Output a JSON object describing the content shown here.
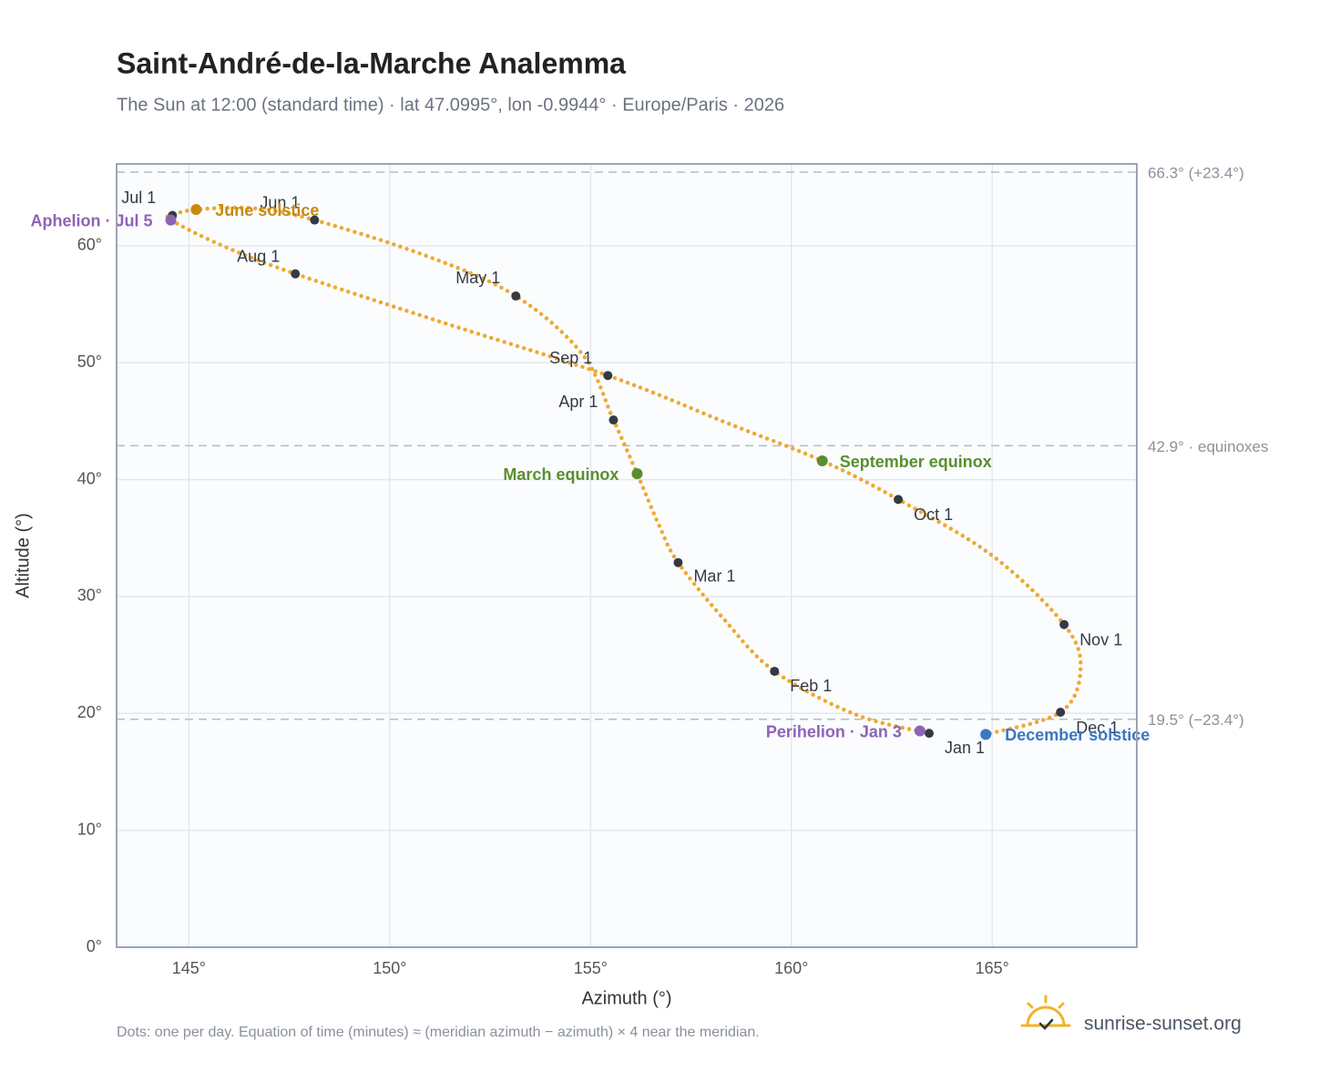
{
  "chart_data": {
    "type": "scatter",
    "title": "Saint-André-de-la-Marche Analemma",
    "subtitle": "The Sun at 12:00 (standard time) · lat 47.0995°, lon -0.9944° · Europe/Paris · 2026",
    "x_label": "Azimuth (°)",
    "y_label": "Altitude (°)",
    "footnote": "Dots: one per day. Equation of time (minutes) ≈ (meridian azimuth − azimuth) × 4 near the meridian.",
    "brand": "sunrise-sunset.org",
    "xlim": [
      143.2,
      168.6
    ],
    "ylim": [
      0,
      67
    ],
    "xticks": [
      {
        "value": 145,
        "label": "145°"
      },
      {
        "value": 150,
        "label": "150°"
      },
      {
        "value": 155,
        "label": "155°"
      },
      {
        "value": 160,
        "label": "160°"
      },
      {
        "value": 165,
        "label": "165°"
      }
    ],
    "yticks": [
      {
        "value": 0,
        "label": "0°"
      },
      {
        "value": 10,
        "label": "10°"
      },
      {
        "value": 20,
        "label": "20°"
      },
      {
        "value": 30,
        "label": "30°"
      },
      {
        "value": 40,
        "label": "40°"
      },
      {
        "value": 50,
        "label": "50°"
      },
      {
        "value": 60,
        "label": "60°"
      }
    ],
    "grid": true,
    "path": {
      "color": "#f0a830",
      "x": [
        163.43,
        161.6,
        159.58,
        158.31,
        157.18,
        156.73,
        156.16,
        155.57,
        154.8,
        153.14,
        150.94,
        148.13,
        146.63,
        145.18,
        144.59,
        144.55,
        145.84,
        147.65,
        151.17,
        155.43,
        158.43,
        160.77,
        162.66,
        165.0,
        166.79,
        167.2,
        166.7,
        164.84
      ],
      "y": [
        18.3,
        19.9,
        23.6,
        28.1,
        32.9,
        35.9,
        40.5,
        45.1,
        50.7,
        55.7,
        59.1,
        62.2,
        63.2,
        63.1,
        62.6,
        62.2,
        60.0,
        57.6,
        53.6,
        48.9,
        44.8,
        41.6,
        38.3,
        33.5,
        27.6,
        23.8,
        20.1,
        18.2
      ]
    },
    "reference_lines": [
      {
        "value": 66.3,
        "label": "66.3° (+23.4°)"
      },
      {
        "value": 42.9,
        "label": "42.9° · equinoxes"
      },
      {
        "value": 19.5,
        "label": "19.5° (−23.4°)"
      }
    ],
    "markers": [
      {
        "label": "Jan 1",
        "x": 163.43,
        "y": 18.3,
        "color": "#343a44"
      },
      {
        "label": "Feb 1",
        "x": 159.58,
        "y": 23.6,
        "color": "#343a44"
      },
      {
        "label": "Mar 1",
        "x": 157.18,
        "y": 32.9,
        "color": "#343a44"
      },
      {
        "label": "Apr 1",
        "x": 155.57,
        "y": 45.1,
        "color": "#343a44"
      },
      {
        "label": "May 1",
        "x": 153.14,
        "y": 55.7,
        "color": "#343a44"
      },
      {
        "label": "Jun 1",
        "x": 148.13,
        "y": 62.2,
        "color": "#343a44"
      },
      {
        "label": "Jul 1",
        "x": 144.59,
        "y": 62.6,
        "color": "#343a44"
      },
      {
        "label": "Aug 1",
        "x": 147.65,
        "y": 57.6,
        "color": "#343a44"
      },
      {
        "label": "Sep 1",
        "x": 155.43,
        "y": 48.9,
        "color": "#343a44"
      },
      {
        "label": "Oct 1",
        "x": 162.66,
        "y": 38.3,
        "color": "#343a44"
      },
      {
        "label": "Nov 1",
        "x": 166.79,
        "y": 27.6,
        "color": "#343a44"
      },
      {
        "label": "Dec 1",
        "x": 166.7,
        "y": 20.1,
        "color": "#343a44"
      },
      {
        "label": "June solstice",
        "x": 145.18,
        "y": 63.1,
        "color": "#c98a0f"
      },
      {
        "label": "Aphelion · Jul 5",
        "x": 144.55,
        "y": 62.2,
        "color": "#8e63b5"
      },
      {
        "label": "March equinox",
        "x": 156.16,
        "y": 40.5,
        "color": "#5a8f2e"
      },
      {
        "label": "September equinox",
        "x": 160.77,
        "y": 41.6,
        "color": "#5a8f2e"
      },
      {
        "label": "December solstice",
        "x": 164.84,
        "y": 18.2,
        "color": "#3b78c0"
      },
      {
        "label": "Perihelion · Jan 3",
        "x": 163.2,
        "y": 18.5,
        "color": "#8e63b5"
      }
    ]
  }
}
